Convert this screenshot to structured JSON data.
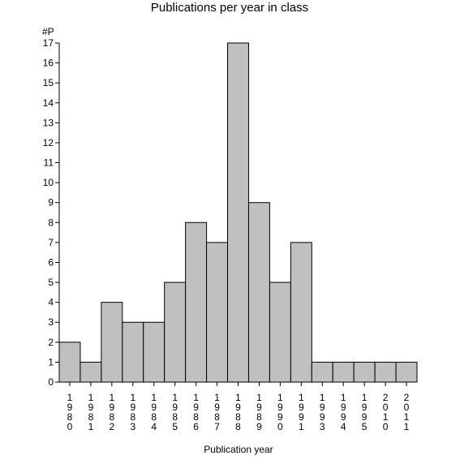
{
  "chart_data": {
    "type": "bar",
    "title": "Publications per year in class",
    "ylabel": "#P",
    "xlabel": "Publication year",
    "categories": [
      "1980",
      "1981",
      "1982",
      "1983",
      "1984",
      "1985",
      "1986",
      "1987",
      "1988",
      "1989",
      "1990",
      "1991",
      "1993",
      "1994",
      "1995",
      "2010",
      "2011"
    ],
    "values": [
      2,
      1,
      4,
      3,
      3,
      5,
      8,
      7,
      17,
      9,
      5,
      7,
      1,
      1,
      1,
      1,
      1
    ],
    "ylim": [
      0,
      17
    ],
    "yticks": [
      0,
      1,
      2,
      3,
      4,
      5,
      6,
      7,
      8,
      9,
      10,
      11,
      12,
      13,
      14,
      15,
      16,
      17
    ],
    "grid": false,
    "colors": {
      "bar": "#c0c0c0",
      "bar_edge": "#000000"
    }
  }
}
